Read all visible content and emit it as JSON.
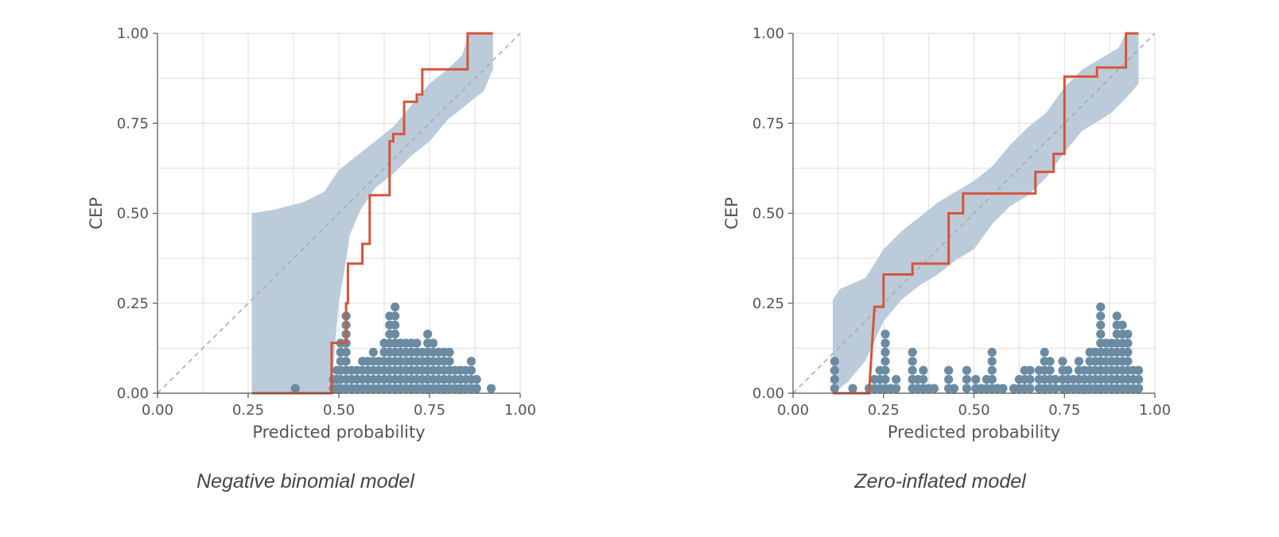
{
  "colors": {
    "band": "#bccbd9",
    "cep_line": "#d4553b",
    "dots": "#6a8ba2",
    "diagonal": "#a8a8a8",
    "grid": "#e4e4e4",
    "axis": "#555555",
    "text": "#555555"
  },
  "chart_data": [
    {
      "type": "line",
      "caption": "Negative binomial model",
      "xlabel": "Predicted probability",
      "ylabel": "CEP",
      "xlim": [
        0,
        1
      ],
      "ylim": [
        0,
        1
      ],
      "xticks": [
        "0.00",
        "0.25",
        "0.50",
        "0.75",
        "1.00"
      ],
      "yticks": [
        "0.00",
        "0.25",
        "0.50",
        "0.75",
        "1.00"
      ],
      "grid": true,
      "diagonal": true,
      "cep_step": [
        [
          0.26,
          0
        ],
        [
          0.48,
          0
        ],
        [
          0.48,
          0.14
        ],
        [
          0.52,
          0.14
        ],
        [
          0.52,
          0.25
        ],
        [
          0.525,
          0.25
        ],
        [
          0.525,
          0.36
        ],
        [
          0.565,
          0.36
        ],
        [
          0.565,
          0.415
        ],
        [
          0.585,
          0.415
        ],
        [
          0.585,
          0.55
        ],
        [
          0.64,
          0.55
        ],
        [
          0.64,
          0.7
        ],
        [
          0.65,
          0.7
        ],
        [
          0.65,
          0.72
        ],
        [
          0.68,
          0.72
        ],
        [
          0.68,
          0.81
        ],
        [
          0.715,
          0.81
        ],
        [
          0.715,
          0.83
        ],
        [
          0.73,
          0.83
        ],
        [
          0.73,
          0.9
        ],
        [
          0.855,
          0.9
        ],
        [
          0.855,
          1.0
        ],
        [
          0.925,
          1.0
        ]
      ],
      "band_upper": [
        [
          0.26,
          0.5
        ],
        [
          0.32,
          0.51
        ],
        [
          0.4,
          0.53
        ],
        [
          0.46,
          0.56
        ],
        [
          0.5,
          0.62
        ],
        [
          0.55,
          0.66
        ],
        [
          0.6,
          0.7
        ],
        [
          0.65,
          0.74
        ],
        [
          0.7,
          0.8
        ],
        [
          0.75,
          0.86
        ],
        [
          0.8,
          0.9
        ],
        [
          0.84,
          0.94
        ],
        [
          0.86,
          1.0
        ],
        [
          0.925,
          1.0
        ]
      ],
      "band_lower": [
        [
          0.925,
          0.9
        ],
        [
          0.9,
          0.84
        ],
        [
          0.85,
          0.8
        ],
        [
          0.8,
          0.76
        ],
        [
          0.75,
          0.7
        ],
        [
          0.7,
          0.66
        ],
        [
          0.65,
          0.61
        ],
        [
          0.6,
          0.57
        ],
        [
          0.56,
          0.51
        ],
        [
          0.53,
          0.44
        ],
        [
          0.52,
          0.37
        ],
        [
          0.5,
          0.25
        ],
        [
          0.49,
          0.14
        ],
        [
          0.48,
          0.0
        ],
        [
          0.26,
          0.0
        ]
      ],
      "dot_columns": [
        {
          "x": 0.38,
          "count": 1
        },
        {
          "x": 0.485,
          "count": 2
        },
        {
          "x": 0.495,
          "count": 3
        },
        {
          "x": 0.505,
          "count": 6
        },
        {
          "x": 0.52,
          "count": 9
        },
        {
          "x": 0.535,
          "count": 3
        },
        {
          "x": 0.55,
          "count": 3
        },
        {
          "x": 0.565,
          "count": 4
        },
        {
          "x": 0.58,
          "count": 4
        },
        {
          "x": 0.595,
          "count": 5
        },
        {
          "x": 0.61,
          "count": 4
        },
        {
          "x": 0.625,
          "count": 6
        },
        {
          "x": 0.64,
          "count": 9
        },
        {
          "x": 0.655,
          "count": 10
        },
        {
          "x": 0.67,
          "count": 6
        },
        {
          "x": 0.685,
          "count": 6
        },
        {
          "x": 0.7,
          "count": 6
        },
        {
          "x": 0.715,
          "count": 6
        },
        {
          "x": 0.73,
          "count": 5
        },
        {
          "x": 0.745,
          "count": 7
        },
        {
          "x": 0.76,
          "count": 6
        },
        {
          "x": 0.775,
          "count": 5
        },
        {
          "x": 0.79,
          "count": 5
        },
        {
          "x": 0.805,
          "count": 5
        },
        {
          "x": 0.82,
          "count": 3
        },
        {
          "x": 0.835,
          "count": 3
        },
        {
          "x": 0.85,
          "count": 3
        },
        {
          "x": 0.865,
          "count": 4
        },
        {
          "x": 0.88,
          "count": 2
        },
        {
          "x": 0.92,
          "count": 1
        }
      ]
    },
    {
      "type": "line",
      "caption": "Zero-inflated model",
      "xlabel": "Predicted probability",
      "ylabel": "CEP",
      "xlim": [
        0,
        1
      ],
      "ylim": [
        0,
        1
      ],
      "xticks": [
        "0.00",
        "0.25",
        "0.50",
        "0.75",
        "1.00"
      ],
      "yticks": [
        "0.00",
        "0.25",
        "0.50",
        "0.75",
        "1.00"
      ],
      "grid": true,
      "diagonal": true,
      "cep_step": [
        [
          0.11,
          0
        ],
        [
          0.21,
          0
        ],
        [
          0.225,
          0.24
        ],
        [
          0.25,
          0.24
        ],
        [
          0.25,
          0.33
        ],
        [
          0.33,
          0.33
        ],
        [
          0.33,
          0.36
        ],
        [
          0.43,
          0.36
        ],
        [
          0.43,
          0.5
        ],
        [
          0.47,
          0.5
        ],
        [
          0.47,
          0.555
        ],
        [
          0.67,
          0.555
        ],
        [
          0.67,
          0.615
        ],
        [
          0.72,
          0.615
        ],
        [
          0.72,
          0.665
        ],
        [
          0.75,
          0.665
        ],
        [
          0.75,
          0.88
        ],
        [
          0.84,
          0.88
        ],
        [
          0.84,
          0.905
        ],
        [
          0.92,
          0.905
        ],
        [
          0.92,
          1.0
        ],
        [
          0.955,
          1.0
        ]
      ],
      "band_upper": [
        [
          0.11,
          0.26
        ],
        [
          0.13,
          0.29
        ],
        [
          0.2,
          0.32
        ],
        [
          0.25,
          0.4
        ],
        [
          0.3,
          0.45
        ],
        [
          0.35,
          0.49
        ],
        [
          0.4,
          0.53
        ],
        [
          0.45,
          0.56
        ],
        [
          0.5,
          0.59
        ],
        [
          0.55,
          0.63
        ],
        [
          0.6,
          0.69
        ],
        [
          0.65,
          0.74
        ],
        [
          0.7,
          0.78
        ],
        [
          0.75,
          0.85
        ],
        [
          0.8,
          0.9
        ],
        [
          0.85,
          0.93
        ],
        [
          0.9,
          0.96
        ],
        [
          0.92,
          1.0
        ],
        [
          0.955,
          1.0
        ]
      ],
      "band_lower": [
        [
          0.955,
          0.86
        ],
        [
          0.92,
          0.82
        ],
        [
          0.88,
          0.78
        ],
        [
          0.85,
          0.76
        ],
        [
          0.8,
          0.73
        ],
        [
          0.75,
          0.67
        ],
        [
          0.7,
          0.6
        ],
        [
          0.65,
          0.55
        ],
        [
          0.6,
          0.52
        ],
        [
          0.55,
          0.47
        ],
        [
          0.5,
          0.4
        ],
        [
          0.45,
          0.37
        ],
        [
          0.4,
          0.33
        ],
        [
          0.35,
          0.3
        ],
        [
          0.3,
          0.26
        ],
        [
          0.25,
          0.2
        ],
        [
          0.2,
          0.09
        ],
        [
          0.15,
          0.03
        ],
        [
          0.11,
          0.0
        ]
      ],
      "dot_columns": [
        {
          "x": 0.115,
          "count": 4
        },
        {
          "x": 0.165,
          "count": 1
        },
        {
          "x": 0.21,
          "count": 1
        },
        {
          "x": 0.225,
          "count": 2
        },
        {
          "x": 0.24,
          "count": 3
        },
        {
          "x": 0.255,
          "count": 7
        },
        {
          "x": 0.27,
          "count": 1
        },
        {
          "x": 0.285,
          "count": 2
        },
        {
          "x": 0.33,
          "count": 5
        },
        {
          "x": 0.345,
          "count": 2
        },
        {
          "x": 0.36,
          "count": 3
        },
        {
          "x": 0.375,
          "count": 1
        },
        {
          "x": 0.39,
          "count": 1
        },
        {
          "x": 0.43,
          "count": 3
        },
        {
          "x": 0.445,
          "count": 1
        },
        {
          "x": 0.48,
          "count": 3
        },
        {
          "x": 0.505,
          "count": 2
        },
        {
          "x": 0.52,
          "count": 1
        },
        {
          "x": 0.535,
          "count": 2
        },
        {
          "x": 0.55,
          "count": 5
        },
        {
          "x": 0.565,
          "count": 1
        },
        {
          "x": 0.58,
          "count": 1
        },
        {
          "x": 0.61,
          "count": 1
        },
        {
          "x": 0.625,
          "count": 2
        },
        {
          "x": 0.64,
          "count": 3
        },
        {
          "x": 0.655,
          "count": 3
        },
        {
          "x": 0.68,
          "count": 3
        },
        {
          "x": 0.695,
          "count": 5
        },
        {
          "x": 0.71,
          "count": 4
        },
        {
          "x": 0.725,
          "count": 2
        },
        {
          "x": 0.745,
          "count": 4
        },
        {
          "x": 0.76,
          "count": 3
        },
        {
          "x": 0.775,
          "count": 2
        },
        {
          "x": 0.79,
          "count": 4
        },
        {
          "x": 0.805,
          "count": 3
        },
        {
          "x": 0.82,
          "count": 5
        },
        {
          "x": 0.835,
          "count": 5
        },
        {
          "x": 0.85,
          "count": 10
        },
        {
          "x": 0.865,
          "count": 6
        },
        {
          "x": 0.88,
          "count": 6
        },
        {
          "x": 0.895,
          "count": 9
        },
        {
          "x": 0.91,
          "count": 8
        },
        {
          "x": 0.925,
          "count": 7
        },
        {
          "x": 0.94,
          "count": 3
        },
        {
          "x": 0.955,
          "count": 3
        }
      ]
    }
  ]
}
